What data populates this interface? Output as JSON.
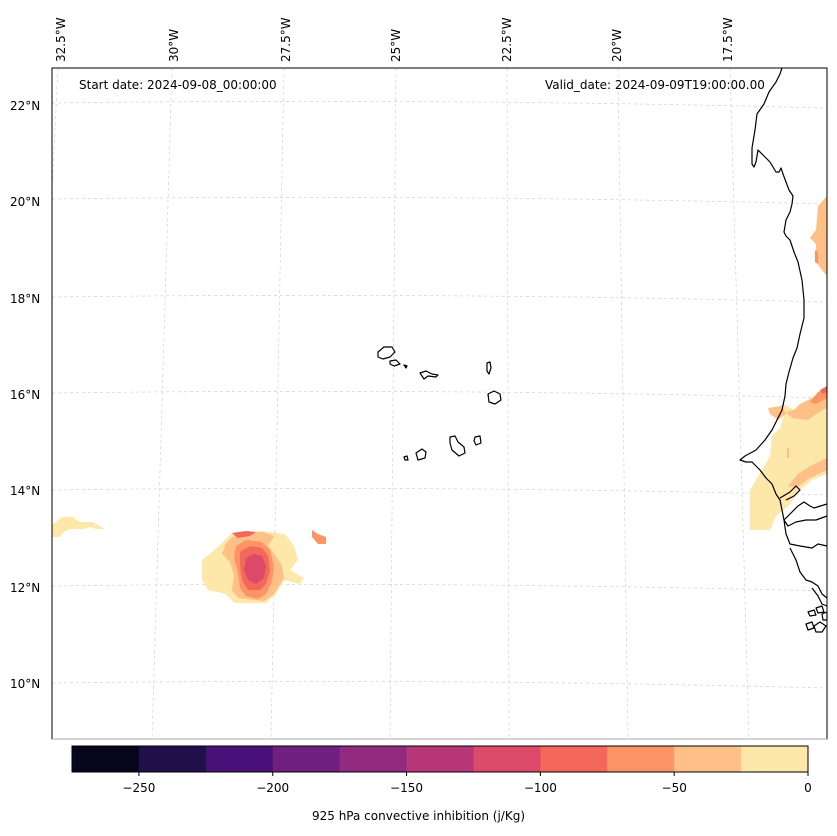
{
  "map": {
    "start_date_label": "Start date: 2024-09-08_00:00:00",
    "valid_date_label": "Valid_date: 2024-09-09T19:00:00.00",
    "lon_ticks": [
      "32.5°W",
      "30°W",
      "27.5°W",
      "25°W",
      "22.5°W",
      "20°W",
      "17.5°W"
    ],
    "lat_ticks": [
      "22°N",
      "20°N",
      "18°N",
      "16°N",
      "14°N",
      "12°N",
      "10°N"
    ],
    "gridlines": true,
    "coastline_color": "#000000",
    "features": [
      "Cape Verde islands",
      "West African coastline (Mauritania, Senegal, Gambia, Guinea-Bissau)"
    ],
    "filled_regions": [
      {
        "name": "low-cin-blob-southwest",
        "approx_center": "12.3°N 28.3°W",
        "min_value_bin": "-125 to -100",
        "max_value_bin": "-25 to 0"
      },
      {
        "name": "small-patch-west",
        "approx_center": "13.2°N 32.5°W",
        "value_bin": "-25 to 0"
      },
      {
        "name": "senegal-coastal-region",
        "approx_center": "14.5°N 16.5°W",
        "min_value_bin": "-100 to -75",
        "max_value_bin": "-25 to 0"
      },
      {
        "name": "mauritania-inland-patch",
        "approx_center": "19°N 15.7°W",
        "value_bin": "-50 to -25"
      }
    ]
  },
  "colorbar": {
    "label": "925 hPa convective inhibition (j/Kg)",
    "ticks": [
      "−250",
      "−200",
      "−150",
      "−100",
      "−50",
      "0"
    ],
    "tick_values": [
      -250,
      -200,
      -150,
      -100,
      -50,
      0
    ],
    "range": [
      -275,
      0
    ],
    "bin_width": 25,
    "colors": [
      "#07061c",
      "#21114b",
      "#4a1079",
      "#6f1f80",
      "#922b7f",
      "#b73779",
      "#dc4a6a",
      "#f4685c",
      "#fd9466",
      "#fec086",
      "#fde7a9"
    ]
  }
}
